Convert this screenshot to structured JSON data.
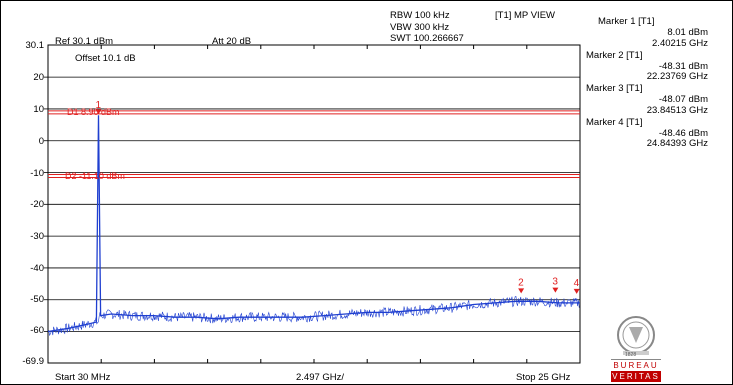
{
  "header": {
    "ref_level": "Ref 30.1 dBm",
    "attenuation": "Att  20 dB",
    "offset": "Offset 10.1 dB",
    "rbw": "RBW 100 kHz",
    "vbw": "VBW 300 kHz",
    "swt": "SWT 100.266667",
    "trace_mode": "[T1] MP VIEW"
  },
  "y_axis": {
    "top_label": "30.1",
    "bottom_label": "-69.9",
    "ticks": [
      "20",
      "10",
      "0",
      "-10",
      "-20",
      "-30",
      "-40",
      "-50",
      "-60"
    ]
  },
  "x_axis": {
    "start": "Start 30 MHz",
    "per_div": "2.497 GHz/",
    "stop": "Stop 25 GHz"
  },
  "display_lines": {
    "d1": {
      "label": "D1 8.90 dBm",
      "level_dbm": 8.9,
      "color": "#e02020"
    },
    "d2": {
      "label": "D2 -11.10 dBm",
      "level_dbm": -11.1,
      "color": "#e02020"
    }
  },
  "markers": [
    {
      "title": "Marker 1 [T1]",
      "level": "8.01 dBm",
      "freq": "2.40215 GHz",
      "num": "1",
      "freq_ghz": 2.40215,
      "level_dbm": 8.01
    },
    {
      "title": "Marker 2 [T1]",
      "level": "-48.31 dBm",
      "freq": "22.23769 GHz",
      "num": "2",
      "freq_ghz": 22.23769,
      "level_dbm": -48.31
    },
    {
      "title": "Marker 3 [T1]",
      "level": "-48.07 dBm",
      "freq": "23.84513 GHz",
      "num": "3",
      "freq_ghz": 23.84513,
      "level_dbm": -48.07
    },
    {
      "title": "Marker 4 [T1]",
      "level": "-48.46 dBm",
      "freq": "24.84393 GHz",
      "num": "4",
      "freq_ghz": 24.84393,
      "level_dbm": -48.46
    }
  ],
  "chart_data": {
    "type": "line",
    "xlim_ghz": [
      0.03,
      25
    ],
    "ylim_dbm": [
      -69.9,
      30.1
    ],
    "grid": true,
    "series": [
      {
        "color": "#1f3fd0",
        "x": [
          0.03,
          1.0,
          2.0,
          2.3,
          2.402,
          2.5,
          3.0,
          4.0,
          5.0,
          6.0,
          7.0,
          8.0,
          9.0,
          10.0,
          11.0,
          12.0,
          13.0,
          14.0,
          15.0,
          16.0,
          17.0,
          18.0,
          19.0,
          20.0,
          21.0,
          22.0,
          23.0,
          24.0,
          25.0
        ],
        "y": [
          -60,
          -59,
          -57.5,
          -57,
          8.01,
          -55,
          -54.5,
          -55,
          -55,
          -55.5,
          -55.5,
          -56,
          -55.5,
          -55.5,
          -55.5,
          -55.5,
          -55,
          -54.5,
          -54,
          -54,
          -53.5,
          -53,
          -52.5,
          -51.5,
          -51,
          -50.5,
          -50.5,
          -51,
          -51
        ]
      }
    ]
  },
  "logo": {
    "line1": "BUREAU",
    "line2": "VERITAS",
    "year": "1828"
  }
}
